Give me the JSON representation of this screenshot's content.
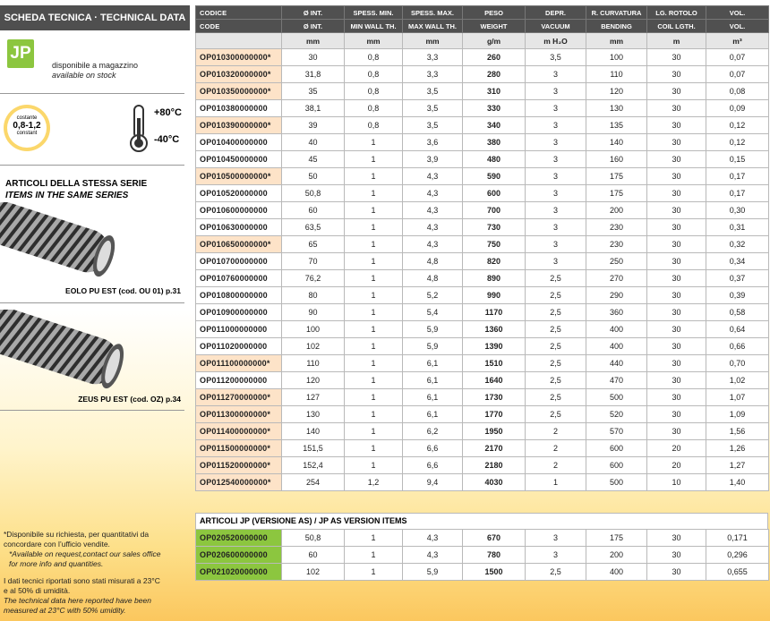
{
  "left": {
    "title": "SCHEDA TECNICA · TECHNICAL DATA",
    "badge": "JP",
    "stock_it": "disponibile a magazzino",
    "stock_en": "available on stock",
    "thickness_top": "costante",
    "thickness_value": "0,8-1,2",
    "thickness_bottom": "constant",
    "temp_max": "+80°C",
    "temp_min": "-40°C",
    "series_it": "ARTICOLI DELLA STESSA SERIE",
    "series_en": "ITEMS IN THE SAME SERIES",
    "items": [
      "EOLO PU EST (cod. OU 01) p.31",
      "ZEUS PU EST (cod. OZ) p.34"
    ],
    "notes": [
      "*Disponibile su richiesta, per quantitativi da concordare con l’ufficio vendite.",
      "*Available on request,contact our sales office for more info and quantities.",
      "I dati tecnici riportati sono stati misurati a 23°C e al 50% di umidità.",
      "The technical data here reported have been measured at 23°C with 50% umidity."
    ]
  },
  "table": {
    "header_it": [
      "CODICE",
      "Ø INT.",
      "SPESS. MIN.",
      "SPESS. MAX.",
      "PESO",
      "DEPR.",
      "R. CURVATURA",
      "LG. ROTOLO",
      "VOL."
    ],
    "header_en": [
      "CODE",
      "Ø INT.",
      "MIN WALL TH.",
      "MAX WALL TH.",
      "WEIGHT",
      "VACUUM",
      "BENDING",
      "COIL LGTH.",
      "VOL."
    ],
    "units": [
      "mm",
      "mm",
      "mm",
      "g/m",
      "m H₂O",
      "mm",
      "m",
      "m³"
    ],
    "rows": [
      [
        "OP010300000000*",
        "30",
        "0,8",
        "3,3",
        "260",
        "3,5",
        "100",
        "30",
        "0,07"
      ],
      [
        "OP010320000000*",
        "31,8",
        "0,8",
        "3,3",
        "280",
        "3",
        "110",
        "30",
        "0,07"
      ],
      [
        "OP010350000000*",
        "35",
        "0,8",
        "3,5",
        "310",
        "3",
        "120",
        "30",
        "0,08"
      ],
      [
        "OP010380000000",
        "38,1",
        "0,8",
        "3,5",
        "330",
        "3",
        "130",
        "30",
        "0,09"
      ],
      [
        "OP010390000000*",
        "39",
        "0,8",
        "3,5",
        "340",
        "3",
        "135",
        "30",
        "0,12"
      ],
      [
        "OP010400000000",
        "40",
        "1",
        "3,6",
        "380",
        "3",
        "140",
        "30",
        "0,12"
      ],
      [
        "OP010450000000",
        "45",
        "1",
        "3,9",
        "480",
        "3",
        "160",
        "30",
        "0,15"
      ],
      [
        "OP010500000000*",
        "50",
        "1",
        "4,3",
        "590",
        "3",
        "175",
        "30",
        "0,17"
      ],
      [
        "OP010520000000",
        "50,8",
        "1",
        "4,3",
        "600",
        "3",
        "175",
        "30",
        "0,17"
      ],
      [
        "OP010600000000",
        "60",
        "1",
        "4,3",
        "700",
        "3",
        "200",
        "30",
        "0,30"
      ],
      [
        "OP010630000000",
        "63,5",
        "1",
        "4,3",
        "730",
        "3",
        "230",
        "30",
        "0,31"
      ],
      [
        "OP010650000000*",
        "65",
        "1",
        "4,3",
        "750",
        "3",
        "230",
        "30",
        "0,32"
      ],
      [
        "OP010700000000",
        "70",
        "1",
        "4,8",
        "820",
        "3",
        "250",
        "30",
        "0,34"
      ],
      [
        "OP010760000000",
        "76,2",
        "1",
        "4,8",
        "890",
        "2,5",
        "270",
        "30",
        "0,37"
      ],
      [
        "OP010800000000",
        "80",
        "1",
        "5,2",
        "990",
        "2,5",
        "290",
        "30",
        "0,39"
      ],
      [
        "OP010900000000",
        "90",
        "1",
        "5,4",
        "1170",
        "2,5",
        "360",
        "30",
        "0,58"
      ],
      [
        "OP011000000000",
        "100",
        "1",
        "5,9",
        "1360",
        "2,5",
        "400",
        "30",
        "0,64"
      ],
      [
        "OP011020000000",
        "102",
        "1",
        "5,9",
        "1390",
        "2,5",
        "400",
        "30",
        "0,66"
      ],
      [
        "OP011100000000*",
        "110",
        "1",
        "6,1",
        "1510",
        "2,5",
        "440",
        "30",
        "0,70"
      ],
      [
        "OP011200000000",
        "120",
        "1",
        "6,1",
        "1640",
        "2,5",
        "470",
        "30",
        "1,02"
      ],
      [
        "OP011270000000*",
        "127",
        "1",
        "6,1",
        "1730",
        "2,5",
        "500",
        "30",
        "1,07"
      ],
      [
        "OP011300000000*",
        "130",
        "1",
        "6,1",
        "1770",
        "2,5",
        "520",
        "30",
        "1,09"
      ],
      [
        "OP011400000000*",
        "140",
        "1",
        "6,2",
        "1950",
        "2",
        "570",
        "30",
        "1,56"
      ],
      [
        "OP011500000000*",
        "151,5",
        "1",
        "6,6",
        "2170",
        "2",
        "600",
        "20",
        "1,26"
      ],
      [
        "OP011520000000*",
        "152,4",
        "1",
        "6,6",
        "2180",
        "2",
        "600",
        "20",
        "1,27"
      ],
      [
        "OP012540000000*",
        "254",
        "1,2",
        "9,4",
        "4030",
        "1",
        "500",
        "10",
        "1,40"
      ]
    ]
  },
  "jp_table": {
    "title": "ARTICOLI JP (VERSIONE AS) / JP AS VERSION ITEMS",
    "rows": [
      [
        "OP020520000000",
        "50,8",
        "1",
        "4,3",
        "670",
        "3",
        "175",
        "30",
        "0,171"
      ],
      [
        "OP020600000000",
        "60",
        "1",
        "4,3",
        "780",
        "3",
        "200",
        "30",
        "0,296"
      ],
      [
        "OP021020000000",
        "102",
        "1",
        "5,9",
        "1500",
        "2,5",
        "400",
        "30",
        "0,655"
      ]
    ]
  }
}
